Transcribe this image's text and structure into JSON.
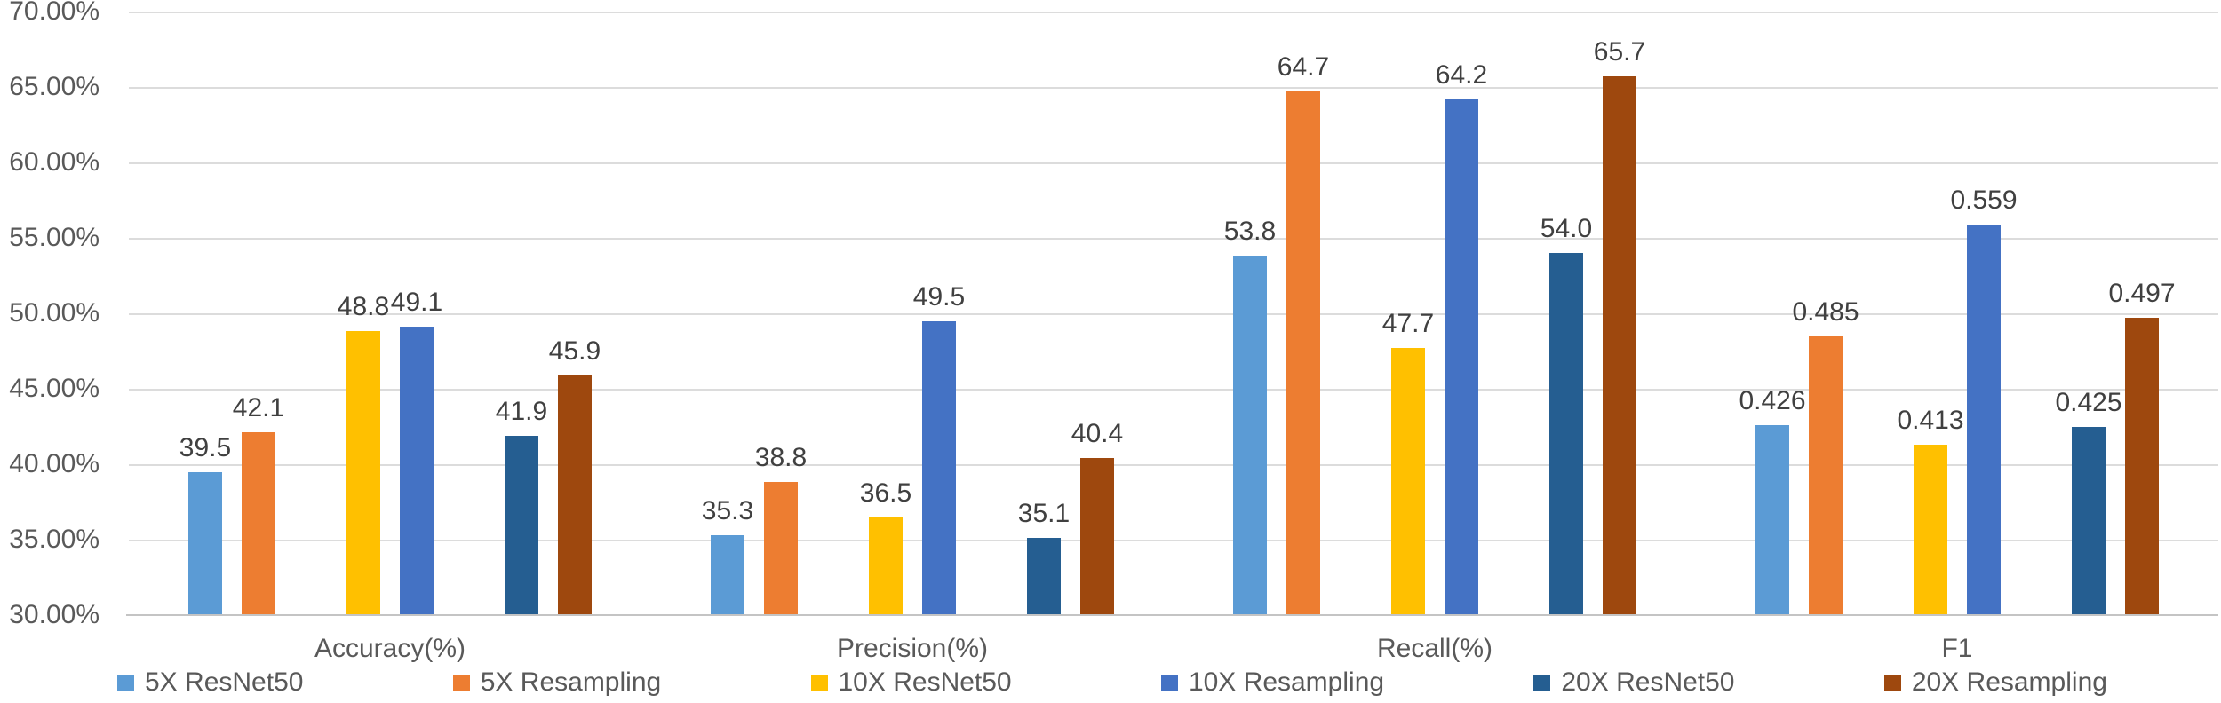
{
  "chart_data": {
    "type": "bar",
    "title": "",
    "xlabel": "",
    "ylabel": "",
    "categories": [
      "Accuracy(%)",
      "Precision(%)",
      "Recall(%)",
      "F1"
    ],
    "series": [
      {
        "name": "5X ResNet50",
        "color": "#5B9BD5",
        "values": [
          39.5,
          35.3,
          53.8,
          0.426
        ],
        "labels": [
          "39.5",
          "35.3",
          "53.8",
          "0.426"
        ],
        "plotted_percent": [
          39.5,
          35.3,
          53.8,
          42.6
        ]
      },
      {
        "name": "5X Resampling",
        "color": "#ED7D31",
        "values": [
          42.1,
          38.8,
          64.7,
          0.485
        ],
        "labels": [
          "42.1",
          "38.8",
          "64.7",
          "0.485"
        ],
        "plotted_percent": [
          42.1,
          38.8,
          64.7,
          48.5
        ]
      },
      {
        "name": "10X ResNet50",
        "color": "#FFC000",
        "values": [
          48.8,
          36.5,
          47.7,
          0.413
        ],
        "labels": [
          "48.8",
          "36.5",
          "47.7",
          "0.413"
        ],
        "plotted_percent": [
          48.8,
          36.5,
          47.7,
          41.3
        ]
      },
      {
        "name": "10X Resampling",
        "color": "#4472C4",
        "values": [
          49.1,
          49.5,
          64.2,
          0.559
        ],
        "labels": [
          "49.1",
          "49.5",
          "64.2",
          "0.559"
        ],
        "plotted_percent": [
          49.1,
          49.5,
          64.2,
          55.9
        ]
      },
      {
        "name": "20X ResNet50",
        "color": "#255E91",
        "values": [
          41.9,
          35.1,
          54.0,
          0.425
        ],
        "labels": [
          "41.9",
          "35.1",
          "54.0",
          "0.425"
        ],
        "plotted_percent": [
          41.9,
          35.1,
          54.0,
          42.5
        ]
      },
      {
        "name": "20X Resampling",
        "color": "#9E480E",
        "values": [
          45.9,
          40.4,
          65.7,
          0.497
        ],
        "labels": [
          "45.9",
          "40.4",
          "65.7",
          "0.497"
        ],
        "plotted_percent": [
          45.9,
          40.4,
          65.7,
          49.7
        ]
      }
    ],
    "ylim": [
      30,
      70
    ],
    "ytick_step": 5,
    "yticks": [
      "70.00%",
      "65.00%",
      "60.00%",
      "55.00%",
      "50.00%",
      "45.00%",
      "40.00%",
      "35.00%",
      "30.00%"
    ],
    "grid": true,
    "legend_position": "bottom",
    "note": "F1 values are fractions plotted on the percentage axis as value x 100; data labels shown above each bar"
  },
  "colors": {
    "background": "#FFFFFF",
    "axis_text": "#595959",
    "data_label_text": "#404040",
    "gridline": "#DCDCDC",
    "baseline": "#C4C4C4"
  }
}
